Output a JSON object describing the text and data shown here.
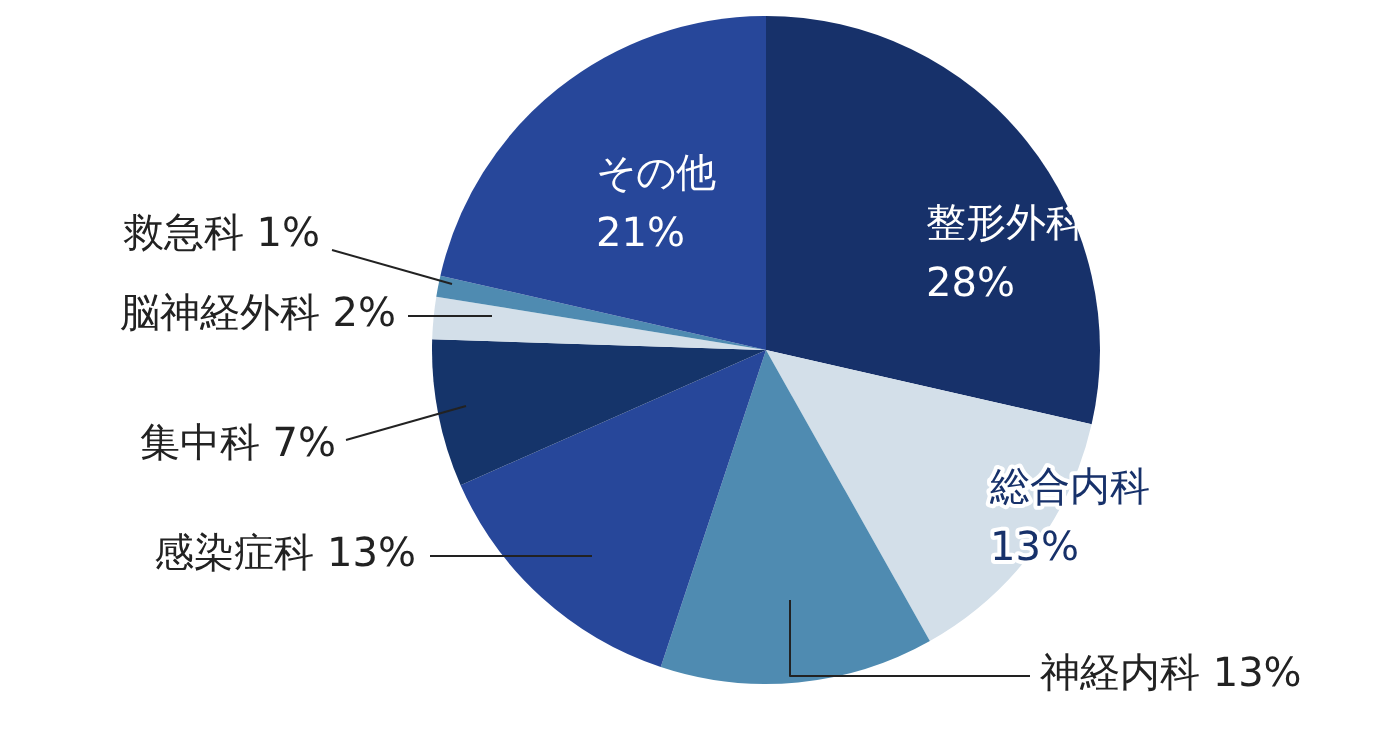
{
  "chart_data": {
    "type": "pie",
    "categories": [
      "整形外科",
      "総合内科",
      "神経内科",
      "感染症科",
      "集中科",
      "脳神経外科",
      "救急科",
      "その他"
    ],
    "values": [
      28,
      13,
      13,
      13,
      7,
      2,
      1,
      21
    ],
    "value_labels": [
      "28%",
      "13%",
      "13%",
      "13%",
      "7%",
      "2%",
      "1%",
      "21%"
    ],
    "colors": [
      "#17316a",
      "#d3dfe9",
      "#4f8bb1",
      "#27479a",
      "#15346a",
      "#d3dfe9",
      "#4f8bb1",
      "#27479a"
    ],
    "legend": false
  }
}
